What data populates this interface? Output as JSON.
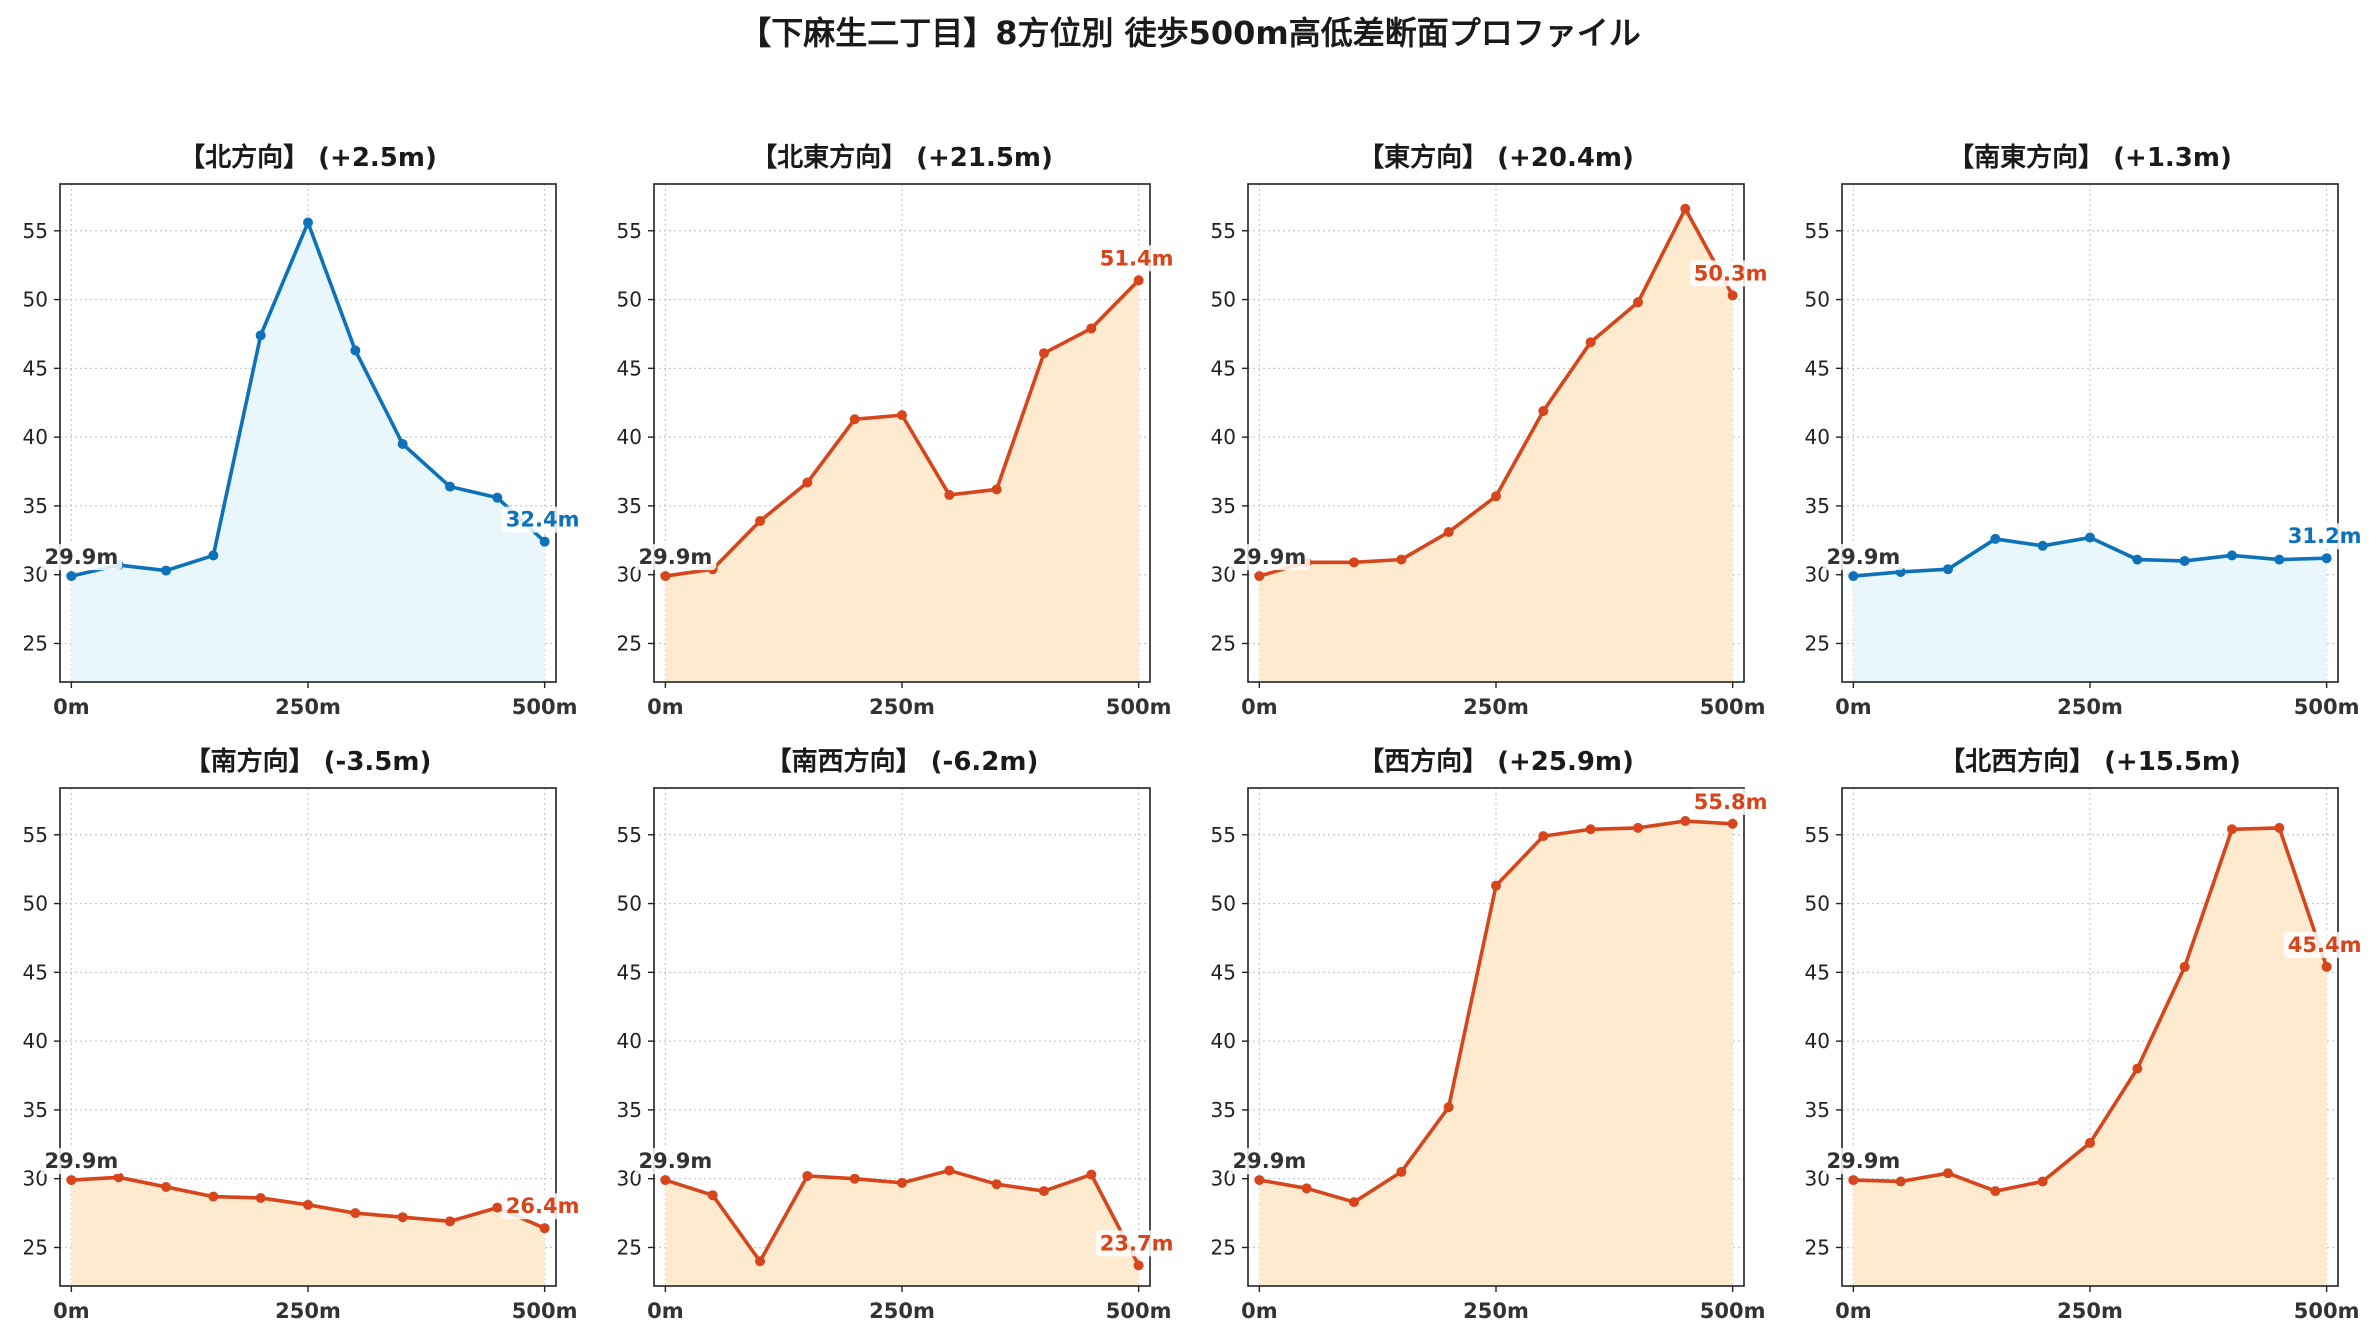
{
  "figure": {
    "title": "【下麻生二丁目】8方位別 徒歩500m高低差断面プロファイル"
  },
  "colors": {
    "up": "#d6451b",
    "up_fill": "#feebcf",
    "flat": "#0d72b9",
    "flat_fill": "#e9f6fb",
    "start_label": "#333333",
    "grid": "#c8c8c8"
  },
  "chart_data": [
    {
      "type": "area",
      "title": "【北方向】 (+2.5m)",
      "trend": "flat",
      "x": [
        0,
        50,
        100,
        150,
        200,
        250,
        300,
        350,
        400,
        450,
        500
      ],
      "values": [
        29.9,
        30.7,
        30.3,
        31.4,
        47.4,
        55.6,
        46.3,
        39.5,
        36.4,
        35.6,
        32.4
      ],
      "start_label": "29.9m",
      "end_label": "32.4m",
      "xticks": [
        "0m",
        "250m",
        "500m"
      ],
      "yticks": [
        "25",
        "30",
        "35",
        "40",
        "45",
        "50",
        "55"
      ],
      "xlim": [
        -12,
        512
      ],
      "ylim": [
        22.2,
        58.4
      ],
      "grid": true
    },
    {
      "type": "area",
      "title": "【北東方向】 (+21.5m)",
      "trend": "up",
      "x": [
        0,
        50,
        100,
        150,
        200,
        250,
        300,
        350,
        400,
        450,
        500
      ],
      "values": [
        29.9,
        30.4,
        33.9,
        36.7,
        41.3,
        41.6,
        35.8,
        36.2,
        46.1,
        47.9,
        51.4
      ],
      "start_label": "29.9m",
      "end_label": "51.4m",
      "xticks": [
        "0m",
        "250m",
        "500m"
      ],
      "yticks": [
        "25",
        "30",
        "35",
        "40",
        "45",
        "50",
        "55"
      ],
      "xlim": [
        -12,
        512
      ],
      "ylim": [
        22.2,
        58.4
      ],
      "grid": true
    },
    {
      "type": "area",
      "title": "【東方向】 (+20.4m)",
      "trend": "up",
      "x": [
        0,
        50,
        100,
        150,
        200,
        250,
        300,
        350,
        400,
        450,
        500
      ],
      "values": [
        29.9,
        30.9,
        30.9,
        31.1,
        33.1,
        35.7,
        41.9,
        46.9,
        49.8,
        56.6,
        50.3
      ],
      "start_label": "29.9m",
      "end_label": "50.3m",
      "xticks": [
        "0m",
        "250m",
        "500m"
      ],
      "yticks": [
        "25",
        "30",
        "35",
        "40",
        "45",
        "50",
        "55"
      ],
      "xlim": [
        -12,
        512
      ],
      "ylim": [
        22.2,
        58.4
      ],
      "grid": true
    },
    {
      "type": "area",
      "title": "【南東方向】 (+1.3m)",
      "trend": "flat",
      "x": [
        0,
        50,
        100,
        150,
        200,
        250,
        300,
        350,
        400,
        450,
        500
      ],
      "values": [
        29.9,
        30.2,
        30.4,
        32.6,
        32.1,
        32.7,
        31.1,
        31.0,
        31.4,
        31.1,
        31.2
      ],
      "start_label": "29.9m",
      "end_label": "31.2m",
      "xticks": [
        "0m",
        "250m",
        "500m"
      ],
      "yticks": [
        "25",
        "30",
        "35",
        "40",
        "45",
        "50",
        "55"
      ],
      "xlim": [
        -12,
        512
      ],
      "ylim": [
        22.2,
        58.4
      ],
      "grid": true
    },
    {
      "type": "area",
      "title": "【南方向】 (-3.5m)",
      "trend": "up",
      "x": [
        0,
        50,
        100,
        150,
        200,
        250,
        300,
        350,
        400,
        450,
        500
      ],
      "values": [
        29.9,
        30.1,
        29.4,
        28.7,
        28.6,
        28.1,
        27.5,
        27.2,
        26.9,
        27.9,
        26.4
      ],
      "start_label": "29.9m",
      "end_label": "26.4m",
      "xticks": [
        "0m",
        "250m",
        "500m"
      ],
      "yticks": [
        "25",
        "30",
        "35",
        "40",
        "45",
        "50",
        "55"
      ],
      "xlim": [
        -12,
        512
      ],
      "ylim": [
        22.2,
        58.4
      ],
      "grid": true
    },
    {
      "type": "area",
      "title": "【南西方向】 (-6.2m)",
      "trend": "up",
      "x": [
        0,
        50,
        100,
        150,
        200,
        250,
        300,
        350,
        400,
        450,
        500
      ],
      "values": [
        29.9,
        28.8,
        24.0,
        30.2,
        30.0,
        29.7,
        30.6,
        29.6,
        29.1,
        30.3,
        23.7
      ],
      "start_label": "29.9m",
      "end_label": "23.7m",
      "xticks": [
        "0m",
        "250m",
        "500m"
      ],
      "yticks": [
        "25",
        "30",
        "35",
        "40",
        "45",
        "50",
        "55"
      ],
      "xlim": [
        -12,
        512
      ],
      "ylim": [
        22.2,
        58.4
      ],
      "grid": true
    },
    {
      "type": "area",
      "title": "【西方向】 (+25.9m)",
      "trend": "up",
      "x": [
        0,
        50,
        100,
        150,
        200,
        250,
        300,
        350,
        400,
        450,
        500
      ],
      "values": [
        29.9,
        29.3,
        28.3,
        30.5,
        35.2,
        51.3,
        54.9,
        55.4,
        55.5,
        56.0,
        55.8
      ],
      "start_label": "29.9m",
      "end_label": "55.8m",
      "xticks": [
        "0m",
        "250m",
        "500m"
      ],
      "yticks": [
        "25",
        "30",
        "35",
        "40",
        "45",
        "50",
        "55"
      ],
      "xlim": [
        -12,
        512
      ],
      "ylim": [
        22.2,
        58.4
      ],
      "grid": true
    },
    {
      "type": "area",
      "title": "【北西方向】 (+15.5m)",
      "trend": "up",
      "x": [
        0,
        50,
        100,
        150,
        200,
        250,
        300,
        350,
        400,
        450,
        500
      ],
      "values": [
        29.9,
        29.8,
        30.4,
        29.1,
        29.8,
        32.6,
        38.0,
        45.4,
        55.4,
        55.5,
        45.4
      ],
      "start_label": "29.9m",
      "end_label": "45.4m",
      "xticks": [
        "0m",
        "250m",
        "500m"
      ],
      "yticks": [
        "25",
        "30",
        "35",
        "40",
        "45",
        "50",
        "55"
      ],
      "xlim": [
        -12,
        512
      ],
      "ylim": [
        22.2,
        58.4
      ],
      "grid": true
    }
  ]
}
